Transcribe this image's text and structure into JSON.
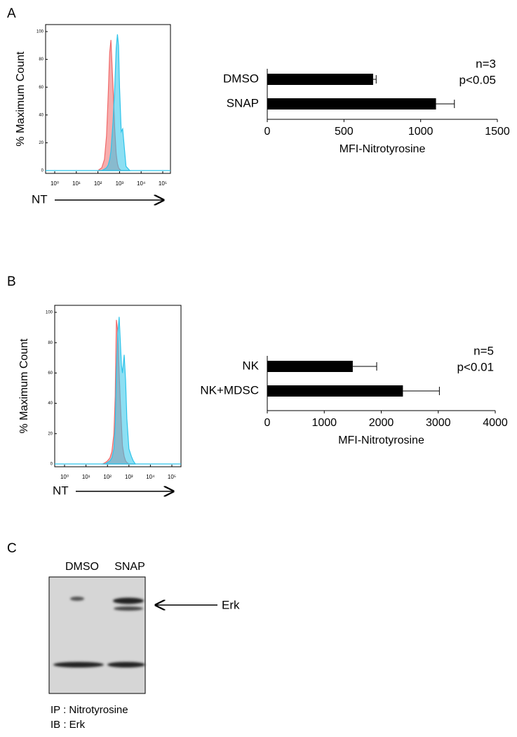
{
  "panel_labels": [
    "A",
    "B",
    "C"
  ],
  "chart_data": [
    {
      "type": "area",
      "ylabel": "% Maximum Count",
      "xlabel": "NT",
      "xscale": "log",
      "xlim": [
        1,
        100000
      ],
      "xticks": [
        {
          "value": 1,
          "label": "10⁰"
        },
        {
          "value": 10,
          "label": "10¹"
        },
        {
          "value": 100,
          "label": "10²"
        },
        {
          "value": 1000,
          "label": "10³"
        },
        {
          "value": 10000,
          "label": "10⁴"
        },
        {
          "value": 100000,
          "label": "10⁵"
        }
      ],
      "ylim": [
        0,
        100
      ],
      "yticks": [
        0,
        20,
        40,
        60,
        80,
        100
      ],
      "x": [
        100,
        150,
        200,
        250,
        300,
        350,
        400,
        500,
        600,
        700,
        800,
        900,
        1000,
        1200,
        1400,
        1700,
        2000,
        3000
      ],
      "series": [
        {
          "color": "#f06a6a",
          "values": [
            0,
            2,
            8,
            25,
            55,
            85,
            94,
            60,
            30,
            12,
            5,
            2,
            1,
            0,
            0,
            0,
            0,
            0
          ]
        },
        {
          "color": "#2ec4ea",
          "values": [
            0,
            0,
            1,
            2,
            4,
            8,
            14,
            35,
            60,
            88,
            98,
            90,
            60,
            28,
            30,
            15,
            3,
            0
          ]
        }
      ]
    },
    {
      "type": "hbar",
      "categories": [
        "DMSO",
        "SNAP"
      ],
      "values": [
        690,
        1100
      ],
      "errors": [
        20,
        120
      ],
      "color": "#000000",
      "xlim": [
        0,
        1500
      ],
      "xticks": [
        0,
        500,
        1000,
        1500
      ],
      "xlabel": "MFI-Nitrotyrosine",
      "annotations": [
        "n=3",
        "p<0.05"
      ]
    },
    {
      "type": "area",
      "ylabel": "% Maximum Count",
      "xlabel": "NT",
      "xscale": "log",
      "xlim": [
        1,
        100000
      ],
      "xticks": [
        {
          "value": 1,
          "label": "10⁰"
        },
        {
          "value": 10,
          "label": "10¹"
        },
        {
          "value": 100,
          "label": "10²"
        },
        {
          "value": 1000,
          "label": "10³"
        },
        {
          "value": 10000,
          "label": "10⁴"
        },
        {
          "value": 100000,
          "label": "10⁵"
        }
      ],
      "ylim": [
        0,
        100
      ],
      "yticks": [
        0,
        20,
        40,
        60,
        80,
        100
      ],
      "x": [
        60,
        80,
        100,
        130,
        160,
        200,
        230,
        260,
        300,
        350,
        400,
        450,
        500,
        600,
        700,
        800,
        1000,
        1300,
        1600,
        2000
      ],
      "series": [
        {
          "color": "#f06a6a",
          "values": [
            0,
            1,
            2,
            4,
            8,
            20,
            45,
            95,
            88,
            60,
            40,
            25,
            12,
            5,
            2,
            1,
            0,
            0,
            0,
            0
          ]
        },
        {
          "color": "#2ec4ea",
          "values": [
            0,
            0,
            1,
            2,
            4,
            10,
            25,
            60,
            85,
            97,
            80,
            65,
            60,
            72,
            55,
            30,
            10,
            5,
            2,
            0
          ]
        }
      ]
    },
    {
      "type": "hbar",
      "categories": [
        "NK",
        "NK+MDSC"
      ],
      "values": [
        1500,
        2380
      ],
      "errors": [
        420,
        640
      ],
      "color": "#000000",
      "xlim": [
        0,
        4000
      ],
      "xticks": [
        0,
        1000,
        2000,
        3000,
        4000
      ],
      "xlabel": "MFI-Nitrotyrosine",
      "annotations": [
        "n=5",
        "p<0.01"
      ]
    }
  ],
  "blot": {
    "lanes": [
      "DMSO",
      "SNAP"
    ],
    "band_label": "Erk",
    "captions": [
      "IP : Nitrotyrosine",
      "IB : Erk"
    ]
  }
}
